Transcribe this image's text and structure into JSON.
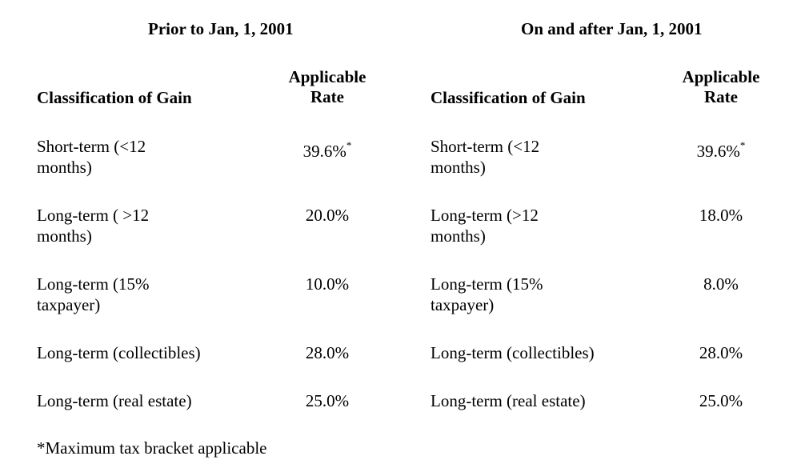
{
  "tables": [
    {
      "heading": "Prior to Jan, 1, 2001",
      "col_classification": "Classification of Gain",
      "col_rate_line1": "Applicable",
      "col_rate_line2": "Rate",
      "rows": [
        {
          "class_line1": "Short-term (<12",
          "class_line2": "months)",
          "rate": "39.6%",
          "mark": "*"
        },
        {
          "class_line1": "Long-term ( >12",
          "class_line2": "months)",
          "rate": "20.0%",
          "mark": ""
        },
        {
          "class_line1": "Long-term (15%",
          "class_line2": "taxpayer)",
          "rate": "10.0%",
          "mark": ""
        },
        {
          "class_line1": "Long-term (collectibles)",
          "class_line2": "",
          "rate": "28.0%",
          "mark": ""
        },
        {
          "class_line1": "Long-term (real estate)",
          "class_line2": "",
          "rate": "25.0%",
          "mark": ""
        }
      ]
    },
    {
      "heading": "On and after Jan, 1, 2001",
      "col_classification": "Classification of Gain",
      "col_rate_line1": "Applicable",
      "col_rate_line2": "Rate",
      "rows": [
        {
          "class_line1": "Short-term (<12",
          "class_line2": "months)",
          "rate": "39.6%",
          "mark": "*"
        },
        {
          "class_line1": "Long-term (>12",
          "class_line2": "months)",
          "rate": "18.0%",
          "mark": ""
        },
        {
          "class_line1": "Long-term (15%",
          "class_line2": "taxpayer)",
          "rate": "8.0%",
          "mark": ""
        },
        {
          "class_line1": "Long-term (collectibles)",
          "class_line2": "",
          "rate": "28.0%",
          "mark": ""
        },
        {
          "class_line1": "Long-term (real estate)",
          "class_line2": "",
          "rate": "25.0%",
          "mark": ""
        }
      ]
    }
  ],
  "footnote": "*Maximum tax bracket applicable"
}
